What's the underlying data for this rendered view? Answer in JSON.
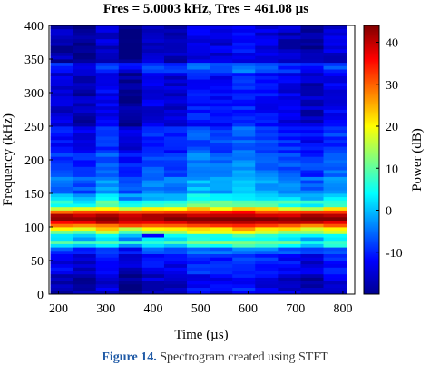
{
  "chart_data": {
    "type": "heatmap",
    "title": "Fres = 5.0003 kHz, Tres = 461.08 µs",
    "xlabel": "Time (µs)",
    "ylabel": "Frequency (kHz)",
    "colorbar_label": "Power (dB)",
    "xlim": [
      180,
      825
    ],
    "ylim": [
      0,
      400
    ],
    "xticks": [
      200,
      300,
      400,
      500,
      600,
      700,
      800
    ],
    "yticks": [
      0,
      50,
      100,
      150,
      200,
      250,
      300,
      350,
      400
    ],
    "colorbar_ticks": [
      -10,
      0,
      10,
      20,
      30,
      40
    ],
    "color_range": [
      -20,
      44
    ],
    "colormap": "jet",
    "time_bins_us": [
      207,
      255,
      303,
      351,
      399,
      447,
      495,
      543,
      591,
      639,
      687,
      735,
      783
    ],
    "freq_bin_khz": 5,
    "bands": [
      {
        "lo": 0,
        "hi": 30,
        "db": -16
      },
      {
        "lo": 30,
        "hi": 60,
        "db": -13
      },
      {
        "lo": 60,
        "hi": 68,
        "db": -8
      },
      {
        "lo": 68,
        "hi": 75,
        "db": 2
      },
      {
        "lo": 75,
        "hi": 80,
        "db": 8
      },
      {
        "lo": 80,
        "hi": 85,
        "db": 0
      },
      {
        "lo": 85,
        "hi": 90,
        "db": 4
      },
      {
        "lo": 90,
        "hi": 95,
        "db": 13
      },
      {
        "lo": 95,
        "hi": 100,
        "db": 20
      },
      {
        "lo": 100,
        "hi": 105,
        "db": 30
      },
      {
        "lo": 105,
        "hi": 110,
        "db": 38
      },
      {
        "lo": 110,
        "hi": 115,
        "db": 43
      },
      {
        "lo": 115,
        "hi": 120,
        "db": 40
      },
      {
        "lo": 120,
        "hi": 125,
        "db": 32
      },
      {
        "lo": 125,
        "hi": 130,
        "db": 18
      },
      {
        "lo": 130,
        "hi": 140,
        "db": 6
      },
      {
        "lo": 140,
        "hi": 150,
        "db": 0
      },
      {
        "lo": 150,
        "hi": 175,
        "db": -5
      },
      {
        "lo": 175,
        "hi": 210,
        "db": -8
      },
      {
        "lo": 210,
        "hi": 250,
        "db": -11
      },
      {
        "lo": 250,
        "hi": 330,
        "db": -15
      },
      {
        "lo": 330,
        "hi": 345,
        "db": -10
      },
      {
        "lo": 345,
        "hi": 400,
        "db": -17
      }
    ],
    "time_offsets_db": [
      0,
      -2,
      2,
      -3,
      1,
      0,
      4,
      3,
      5,
      3,
      1,
      -1,
      2
    ],
    "dips": [
      {
        "time_us": 399,
        "lo": 85,
        "hi": 90,
        "db": -12
      }
    ]
  },
  "caption": {
    "label": "Figure 14.",
    "text": " Spectrogram created using STFT"
  }
}
